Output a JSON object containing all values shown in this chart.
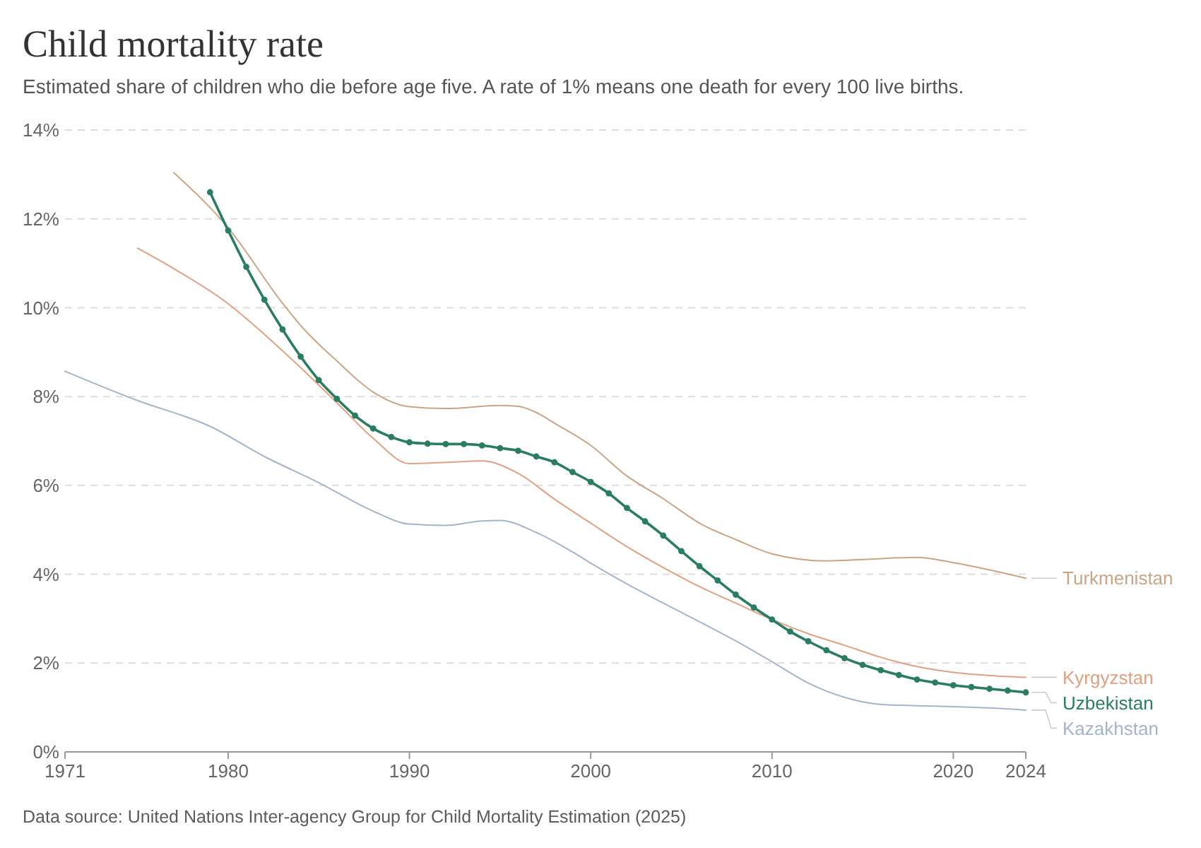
{
  "chart_data": {
    "type": "line",
    "title": "Child mortality rate",
    "subtitle": "Estimated share of children who die before age five. A rate of 1% means one death for every 100 live births.",
    "annotations": [
      "Data source: United Nations Inter-agency Group for Child Mortality Estimation (2025)"
    ],
    "xlim": [
      1971,
      2024
    ],
    "xticks": [
      1971,
      1980,
      1990,
      2000,
      2010,
      2020,
      2024
    ],
    "ylim": [
      0,
      14
    ],
    "yticks": [
      {
        "value": 0,
        "label": "0%"
      },
      {
        "value": 2,
        "label": "2%"
      },
      {
        "value": 4,
        "label": "4%"
      },
      {
        "value": 6,
        "label": "6%"
      },
      {
        "value": 8,
        "label": "8%"
      },
      {
        "value": 10,
        "label": "10%"
      },
      {
        "value": 12,
        "label": "12%"
      },
      {
        "value": 14,
        "label": "14%"
      }
    ],
    "grid": "y",
    "legend": "right",
    "series": [
      {
        "name": "Turkmenistan",
        "color": "#c9a585",
        "marker": "none",
        "x": [
          1977,
          1980,
          1983,
          1984,
          1986,
          1988,
          1990,
          1992,
          1995,
          1996,
          1997,
          1998,
          2000,
          2002,
          2004,
          2006,
          2008,
          2010,
          2013,
          2015,
          2018,
          2020,
          2024
        ],
        "values": [
          13.04,
          11.8,
          10.1,
          9.6,
          8.8,
          8.1,
          7.77,
          7.73,
          7.8,
          7.78,
          7.64,
          7.4,
          6.9,
          6.21,
          5.7,
          5.15,
          4.78,
          4.46,
          4.3,
          4.33,
          4.38,
          4.26,
          3.91
        ]
      },
      {
        "name": "Kyrgyzstan",
        "color": "#e0a083",
        "marker": "none",
        "x": [
          1975,
          1977,
          1980,
          1982,
          1984,
          1986,
          1988,
          1990,
          1992,
          1994,
          1996,
          1998,
          2000,
          2002,
          2004,
          2006,
          2008,
          2010,
          2012,
          2014,
          2016,
          2018,
          2020,
          2022,
          2024
        ],
        "values": [
          11.34,
          10.88,
          10.09,
          9.4,
          8.65,
          7.86,
          7.06,
          6.49,
          6.52,
          6.55,
          6.27,
          5.69,
          5.15,
          4.62,
          4.15,
          3.72,
          3.35,
          2.98,
          2.66,
          2.4,
          2.13,
          1.92,
          1.79,
          1.72,
          1.68
        ]
      },
      {
        "name": "Uzbekistan",
        "color": "#2a7d62",
        "marker": "circle",
        "x": [
          1979,
          1980,
          1981,
          1982,
          1983,
          1984,
          1985,
          1986,
          1987,
          1988,
          1989,
          1990,
          1991,
          1992,
          1993,
          1994,
          1995,
          1996,
          1997,
          1998,
          1999,
          2000,
          2001,
          2002,
          2003,
          2004,
          2005,
          2006,
          2007,
          2008,
          2009,
          2010,
          2011,
          2012,
          2013,
          2014,
          2015,
          2016,
          2017,
          2018,
          2019,
          2020,
          2021,
          2022,
          2023,
          2024
        ],
        "values": [
          12.6,
          11.74,
          10.92,
          10.18,
          9.51,
          8.9,
          8.37,
          7.95,
          7.57,
          7.28,
          7.09,
          6.97,
          6.94,
          6.93,
          6.93,
          6.9,
          6.84,
          6.78,
          6.65,
          6.52,
          6.3,
          6.08,
          5.82,
          5.49,
          5.19,
          4.87,
          4.52,
          4.18,
          3.86,
          3.54,
          3.25,
          2.98,
          2.71,
          2.49,
          2.29,
          2.11,
          1.96,
          1.84,
          1.73,
          1.63,
          1.56,
          1.5,
          1.46,
          1.42,
          1.38,
          1.34
        ]
      },
      {
        "name": "Kazakhstan",
        "color": "#a4b5cb",
        "marker": "none",
        "x": [
          1971,
          1975,
          1979,
          1982,
          1985,
          1988,
          1990,
          1992,
          1994,
          1995,
          1997,
          1999,
          2000,
          2002,
          2004,
          2006,
          2008,
          2010,
          2012,
          2014,
          2016,
          2018,
          2020,
          2022,
          2024
        ],
        "values": [
          8.57,
          7.91,
          7.33,
          6.65,
          6.06,
          5.42,
          5.13,
          5.1,
          5.2,
          5.21,
          4.94,
          4.5,
          4.25,
          3.78,
          3.35,
          2.93,
          2.5,
          2.03,
          1.55,
          1.23,
          1.07,
          1.04,
          1.02,
          0.99,
          0.94
        ]
      }
    ]
  }
}
